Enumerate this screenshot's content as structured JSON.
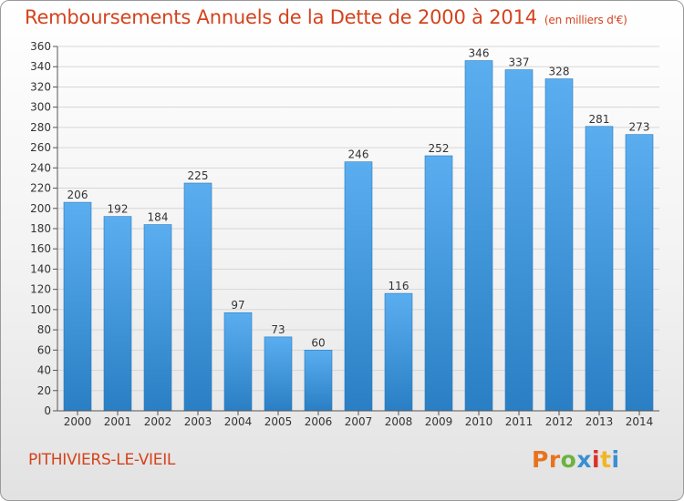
{
  "header": {
    "title": "Remboursements Annuels de la Dette de 2000 à 2014",
    "unit": "(en milliers d'€)"
  },
  "footer": {
    "commune": "PITHIVIERS-LE-VIEIL",
    "logo_letters": [
      "P",
      "r",
      "o",
      "x",
      "i",
      "t",
      "i"
    ],
    "logo_colors": [
      "#e8731e",
      "#e8731e",
      "#6bb33e",
      "#3a8fd2",
      "#d9312b",
      "#f1b526",
      "#3a8fd2"
    ]
  },
  "chart_data": {
    "type": "bar",
    "title": "Remboursements Annuels de la Dette de 2000 à 2014",
    "xlabel": "",
    "ylabel": "",
    "categories": [
      "2000",
      "2001",
      "2002",
      "2003",
      "2004",
      "2005",
      "2006",
      "2007",
      "2008",
      "2009",
      "2010",
      "2011",
      "2012",
      "2013",
      "2014"
    ],
    "values": [
      206,
      192,
      184,
      225,
      97,
      73,
      60,
      246,
      116,
      252,
      346,
      337,
      328,
      281,
      273
    ],
    "ylim": [
      0,
      360
    ],
    "ytick_step": 20,
    "grid": true,
    "bar_color_top": "#5aaef0",
    "bar_color_bottom": "#2a7fc4"
  }
}
